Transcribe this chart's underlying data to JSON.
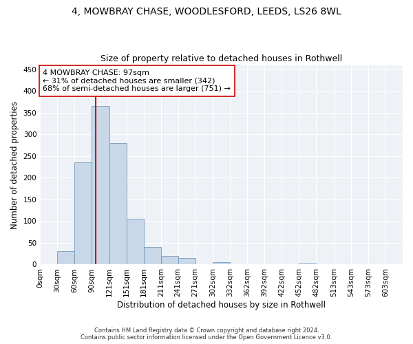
{
  "title_line1": "4, MOWBRAY CHASE, WOODLESFORD, LEEDS, LS26 8WL",
  "title_line2": "Size of property relative to detached houses in Rothwell",
  "xlabel": "Distribution of detached houses by size in Rothwell",
  "ylabel": "Number of detached properties",
  "bin_labels": [
    "0sqm",
    "30sqm",
    "60sqm",
    "90sqm",
    "121sqm",
    "151sqm",
    "181sqm",
    "211sqm",
    "241sqm",
    "271sqm",
    "302sqm",
    "332sqm",
    "362sqm",
    "392sqm",
    "422sqm",
    "452sqm",
    "482sqm",
    "513sqm",
    "543sqm",
    "573sqm",
    "603sqm"
  ],
  "bin_edges": [
    0,
    30,
    60,
    90,
    121,
    151,
    181,
    211,
    241,
    271,
    302,
    332,
    362,
    392,
    422,
    452,
    482,
    513,
    543,
    573,
    603,
    633
  ],
  "bar_heights": [
    0,
    31,
    235,
    365,
    280,
    105,
    40,
    20,
    15,
    0,
    5,
    0,
    0,
    0,
    0,
    2,
    0,
    0,
    0,
    0,
    0
  ],
  "bar_color": "#c8d8e8",
  "bar_edgecolor": "#7799bb",
  "property_value": 97,
  "vline_color": "#cc0000",
  "annotation_text": "4 MOWBRAY CHASE: 97sqm\n← 31% of detached houses are smaller (342)\n68% of semi-detached houses are larger (751) →",
  "annotation_box_edgecolor": "#cc0000",
  "annotation_box_facecolor": "#ffffff",
  "ylim": [
    0,
    460
  ],
  "yticks": [
    0,
    50,
    100,
    150,
    200,
    250,
    300,
    350,
    400,
    450
  ],
  "background_color": "#eef2f7",
  "footer_text": "Contains HM Land Registry data © Crown copyright and database right 2024.\nContains public sector information licensed under the Open Government Licence v3.0.",
  "title_fontsize": 10,
  "subtitle_fontsize": 9,
  "axis_label_fontsize": 8.5,
  "tick_fontsize": 7.5,
  "annotation_fontsize": 8
}
